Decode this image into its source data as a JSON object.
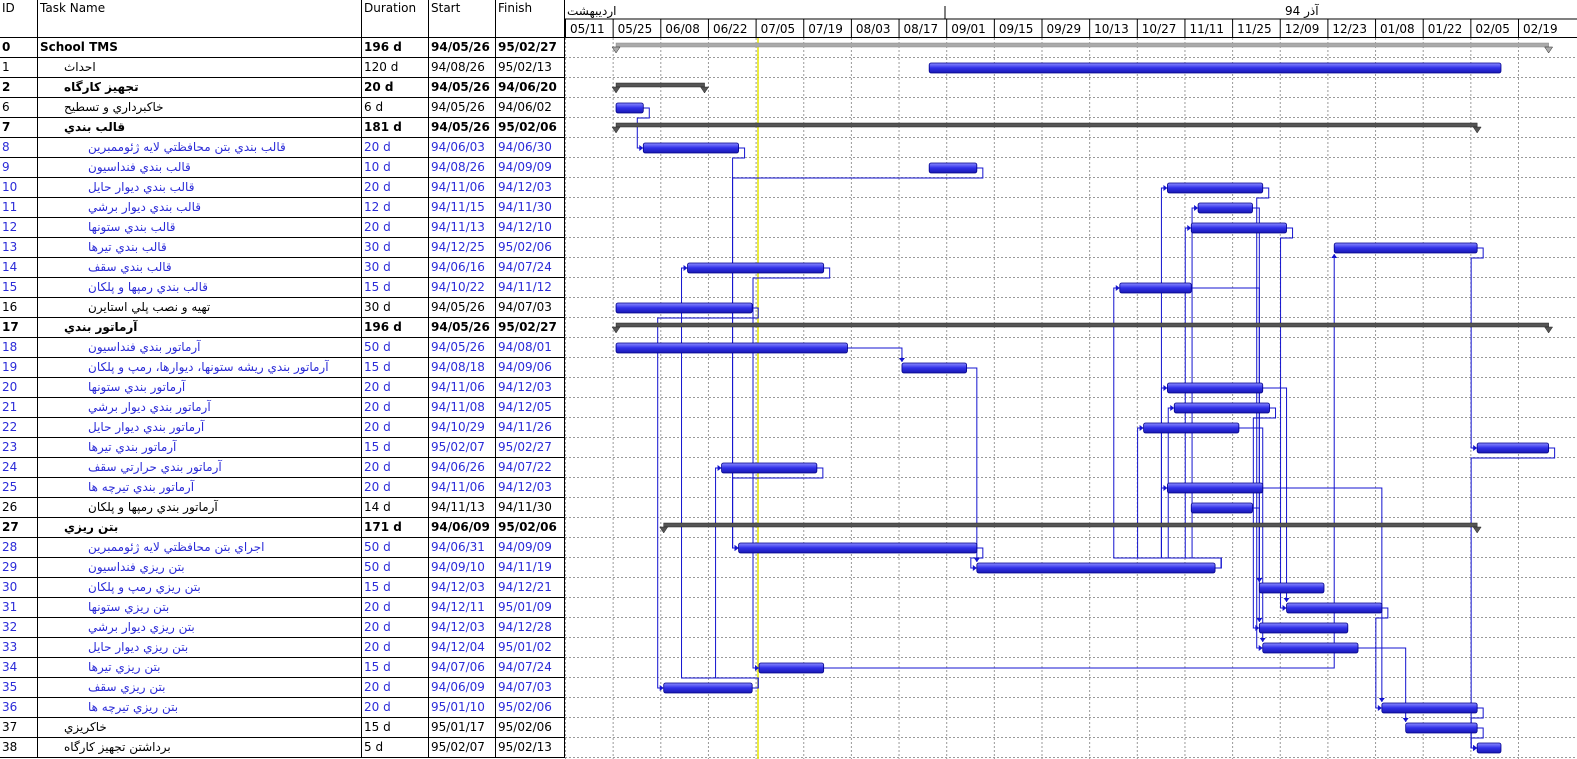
{
  "headers": {
    "id": "ID",
    "name": "Task Name",
    "duration": "Duration",
    "start": "Start",
    "finish": "Finish"
  },
  "timescale": {
    "top": [
      {
        "label": "اردیبهشت"
      },
      {
        "label": "آذر 94"
      }
    ],
    "ticks": [
      "05/11",
      "05/25",
      "06/08",
      "06/22",
      "07/05",
      "07/19",
      "08/03",
      "08/17",
      "09/01",
      "09/15",
      "09/29",
      "10/13",
      "10/27",
      "11/11",
      "11/25",
      "12/09",
      "12/23",
      "01/08",
      "01/22",
      "02/05",
      "02/19"
    ]
  },
  "tasks": [
    {
      "id": "0",
      "name": "School TMS",
      "duration": "196 d",
      "start": "94/05/26",
      "finish": "95/02/27",
      "level": 0,
      "type": "summary"
    },
    {
      "id": "1",
      "name": "احداث",
      "duration": "120 d",
      "start": "94/08/26",
      "finish": "95/02/13",
      "level": 1,
      "type": "task"
    },
    {
      "id": "2",
      "name": "تجهيز كارگاه",
      "duration": "20 d",
      "start": "94/05/26",
      "finish": "94/06/20",
      "level": 1,
      "type": "summary"
    },
    {
      "id": "6",
      "name": "خاكبرداري و تسطيح",
      "duration": "6 d",
      "start": "94/05/26",
      "finish": "94/06/02",
      "level": 1,
      "type": "task"
    },
    {
      "id": "7",
      "name": "قالب بندي",
      "duration": "181 d",
      "start": "94/05/26",
      "finish": "95/02/06",
      "level": 1,
      "type": "summary"
    },
    {
      "id": "8",
      "name": "قالب بندي بتن محافظتي لايه ژئوممبرين",
      "duration": "20 d",
      "start": "94/06/03",
      "finish": "94/06/30",
      "level": 2,
      "type": "sub"
    },
    {
      "id": "9",
      "name": "قالب بندي فنداسيون",
      "duration": "10 d",
      "start": "94/08/26",
      "finish": "94/09/09",
      "level": 2,
      "type": "sub"
    },
    {
      "id": "10",
      "name": "قالب بندي ديوار حايل",
      "duration": "20 d",
      "start": "94/11/06",
      "finish": "94/12/03",
      "level": 2,
      "type": "sub"
    },
    {
      "id": "11",
      "name": "قالب بندي ديوار برشي",
      "duration": "12 d",
      "start": "94/11/15",
      "finish": "94/11/30",
      "level": 2,
      "type": "sub"
    },
    {
      "id": "12",
      "name": "قالب بندي ستونها",
      "duration": "20 d",
      "start": "94/11/13",
      "finish": "94/12/10",
      "level": 2,
      "type": "sub"
    },
    {
      "id": "13",
      "name": "قالب بندي تيرها",
      "duration": "30 d",
      "start": "94/12/25",
      "finish": "95/02/06",
      "level": 2,
      "type": "sub"
    },
    {
      "id": "14",
      "name": "قالب بندي سقف",
      "duration": "30 d",
      "start": "94/06/16",
      "finish": "94/07/24",
      "level": 2,
      "type": "sub"
    },
    {
      "id": "15",
      "name": "قالب بندي رمپها و پلكان",
      "duration": "15 d",
      "start": "94/10/22",
      "finish": "94/11/12",
      "level": 2,
      "type": "sub"
    },
    {
      "id": "16",
      "name": "تهيه و نصب پلي استايرن",
      "duration": "30 d",
      "start": "94/05/26",
      "finish": "94/07/03",
      "level": 2,
      "type": "task"
    },
    {
      "id": "17",
      "name": "آرماتور بندي",
      "duration": "196 d",
      "start": "94/05/26",
      "finish": "95/02/27",
      "level": 1,
      "type": "summary"
    },
    {
      "id": "18",
      "name": "آرماتور بندي فنداسيون",
      "duration": "50 d",
      "start": "94/05/26",
      "finish": "94/08/01",
      "level": 2,
      "type": "sub"
    },
    {
      "id": "19",
      "name": "آرماتور بندي ريشه ستونها، ديوارها، رمپ و پلكان",
      "duration": "15 d",
      "start": "94/08/18",
      "finish": "94/09/06",
      "level": 2,
      "type": "sub"
    },
    {
      "id": "20",
      "name": "آرماتور بندي ستونها",
      "duration": "20 d",
      "start": "94/11/06",
      "finish": "94/12/03",
      "level": 2,
      "type": "sub"
    },
    {
      "id": "21",
      "name": "آرماتور بندي ديوار برشي",
      "duration": "20 d",
      "start": "94/11/08",
      "finish": "94/12/05",
      "level": 2,
      "type": "sub"
    },
    {
      "id": "22",
      "name": "آرماتور بندي ديوار حايل",
      "duration": "20 d",
      "start": "94/10/29",
      "finish": "94/11/26",
      "level": 2,
      "type": "sub"
    },
    {
      "id": "23",
      "name": "آرماتور بندي تيرها",
      "duration": "15 d",
      "start": "95/02/07",
      "finish": "95/02/27",
      "level": 2,
      "type": "sub"
    },
    {
      "id": "24",
      "name": "آرماتور بندي حرارتي سقف",
      "duration": "20 d",
      "start": "94/06/26",
      "finish": "94/07/22",
      "level": 2,
      "type": "sub"
    },
    {
      "id": "25",
      "name": "آرماتور بندي تيرچه ها",
      "duration": "20 d",
      "start": "94/11/06",
      "finish": "94/12/03",
      "level": 2,
      "type": "sub"
    },
    {
      "id": "26",
      "name": "آرماتور بندي رمپها و پلكان",
      "duration": "14 d",
      "start": "94/11/13",
      "finish": "94/11/30",
      "level": 2,
      "type": "task"
    },
    {
      "id": "27",
      "name": "بتن ريزي",
      "duration": "171 d",
      "start": "94/06/09",
      "finish": "95/02/06",
      "level": 1,
      "type": "summary"
    },
    {
      "id": "28",
      "name": "اجراي بتن محافظتي لايه ژئوممبرين",
      "duration": "50 d",
      "start": "94/06/31",
      "finish": "94/09/09",
      "level": 2,
      "type": "sub"
    },
    {
      "id": "29",
      "name": "بتن ريزي فنداسيون",
      "duration": "50 d",
      "start": "94/09/10",
      "finish": "94/11/19",
      "level": 2,
      "type": "sub"
    },
    {
      "id": "30",
      "name": "بتن ريزي رمپ و پلكان",
      "duration": "15 d",
      "start": "94/12/03",
      "finish": "94/12/21",
      "level": 2,
      "type": "sub"
    },
    {
      "id": "31",
      "name": "بتن ريزي ستونها",
      "duration": "20 d",
      "start": "94/12/11",
      "finish": "95/01/09",
      "level": 2,
      "type": "sub"
    },
    {
      "id": "32",
      "name": "بتن ريزي ديوار برشي",
      "duration": "20 d",
      "start": "94/12/03",
      "finish": "94/12/28",
      "level": 2,
      "type": "sub"
    },
    {
      "id": "33",
      "name": "بتن ريزي ديوار حايل",
      "duration": "20 d",
      "start": "94/12/04",
      "finish": "95/01/02",
      "level": 2,
      "type": "sub"
    },
    {
      "id": "34",
      "name": "بتن ريزي تيرها",
      "duration": "15 d",
      "start": "94/07/06",
      "finish": "94/07/24",
      "level": 2,
      "type": "sub"
    },
    {
      "id": "35",
      "name": "بتن ريزي سقف",
      "duration": "20 d",
      "start": "94/06/09",
      "finish": "94/07/03",
      "level": 2,
      "type": "sub"
    },
    {
      "id": "36",
      "name": "بتن ريزي تيرچه ها",
      "duration": "20 d",
      "start": "95/01/10",
      "finish": "95/02/06",
      "level": 2,
      "type": "sub"
    },
    {
      "id": "37",
      "name": "خاكريزي",
      "duration": "15 d",
      "start": "95/01/17",
      "finish": "95/02/06",
      "level": 1,
      "type": "task"
    },
    {
      "id": "38",
      "name": "برداشتن تجهيز كارگاه",
      "duration": "5 d",
      "start": "95/02/07",
      "finish": "95/02/13",
      "level": 1,
      "type": "task"
    }
  ],
  "colors": {
    "bar": "#2f2fe8",
    "bar_border": "#00008b",
    "summary": "#555555",
    "link": "#1414d0",
    "today": "#e6e600",
    "grid": "#9a9a9a"
  }
}
